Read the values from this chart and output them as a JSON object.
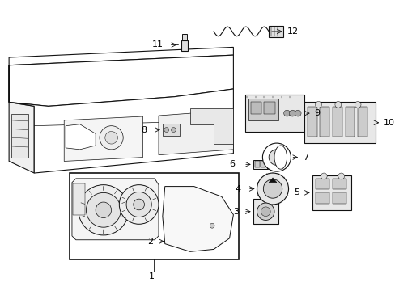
{
  "background_color": "#ffffff",
  "line_color": "#111111",
  "label_color": "#000000",
  "fig_width": 4.89,
  "fig_height": 3.6,
  "dpi": 100,
  "font_size": 8.0,
  "lw_main": 0.8,
  "lw_thin": 0.5,
  "lw_detail": 0.35
}
